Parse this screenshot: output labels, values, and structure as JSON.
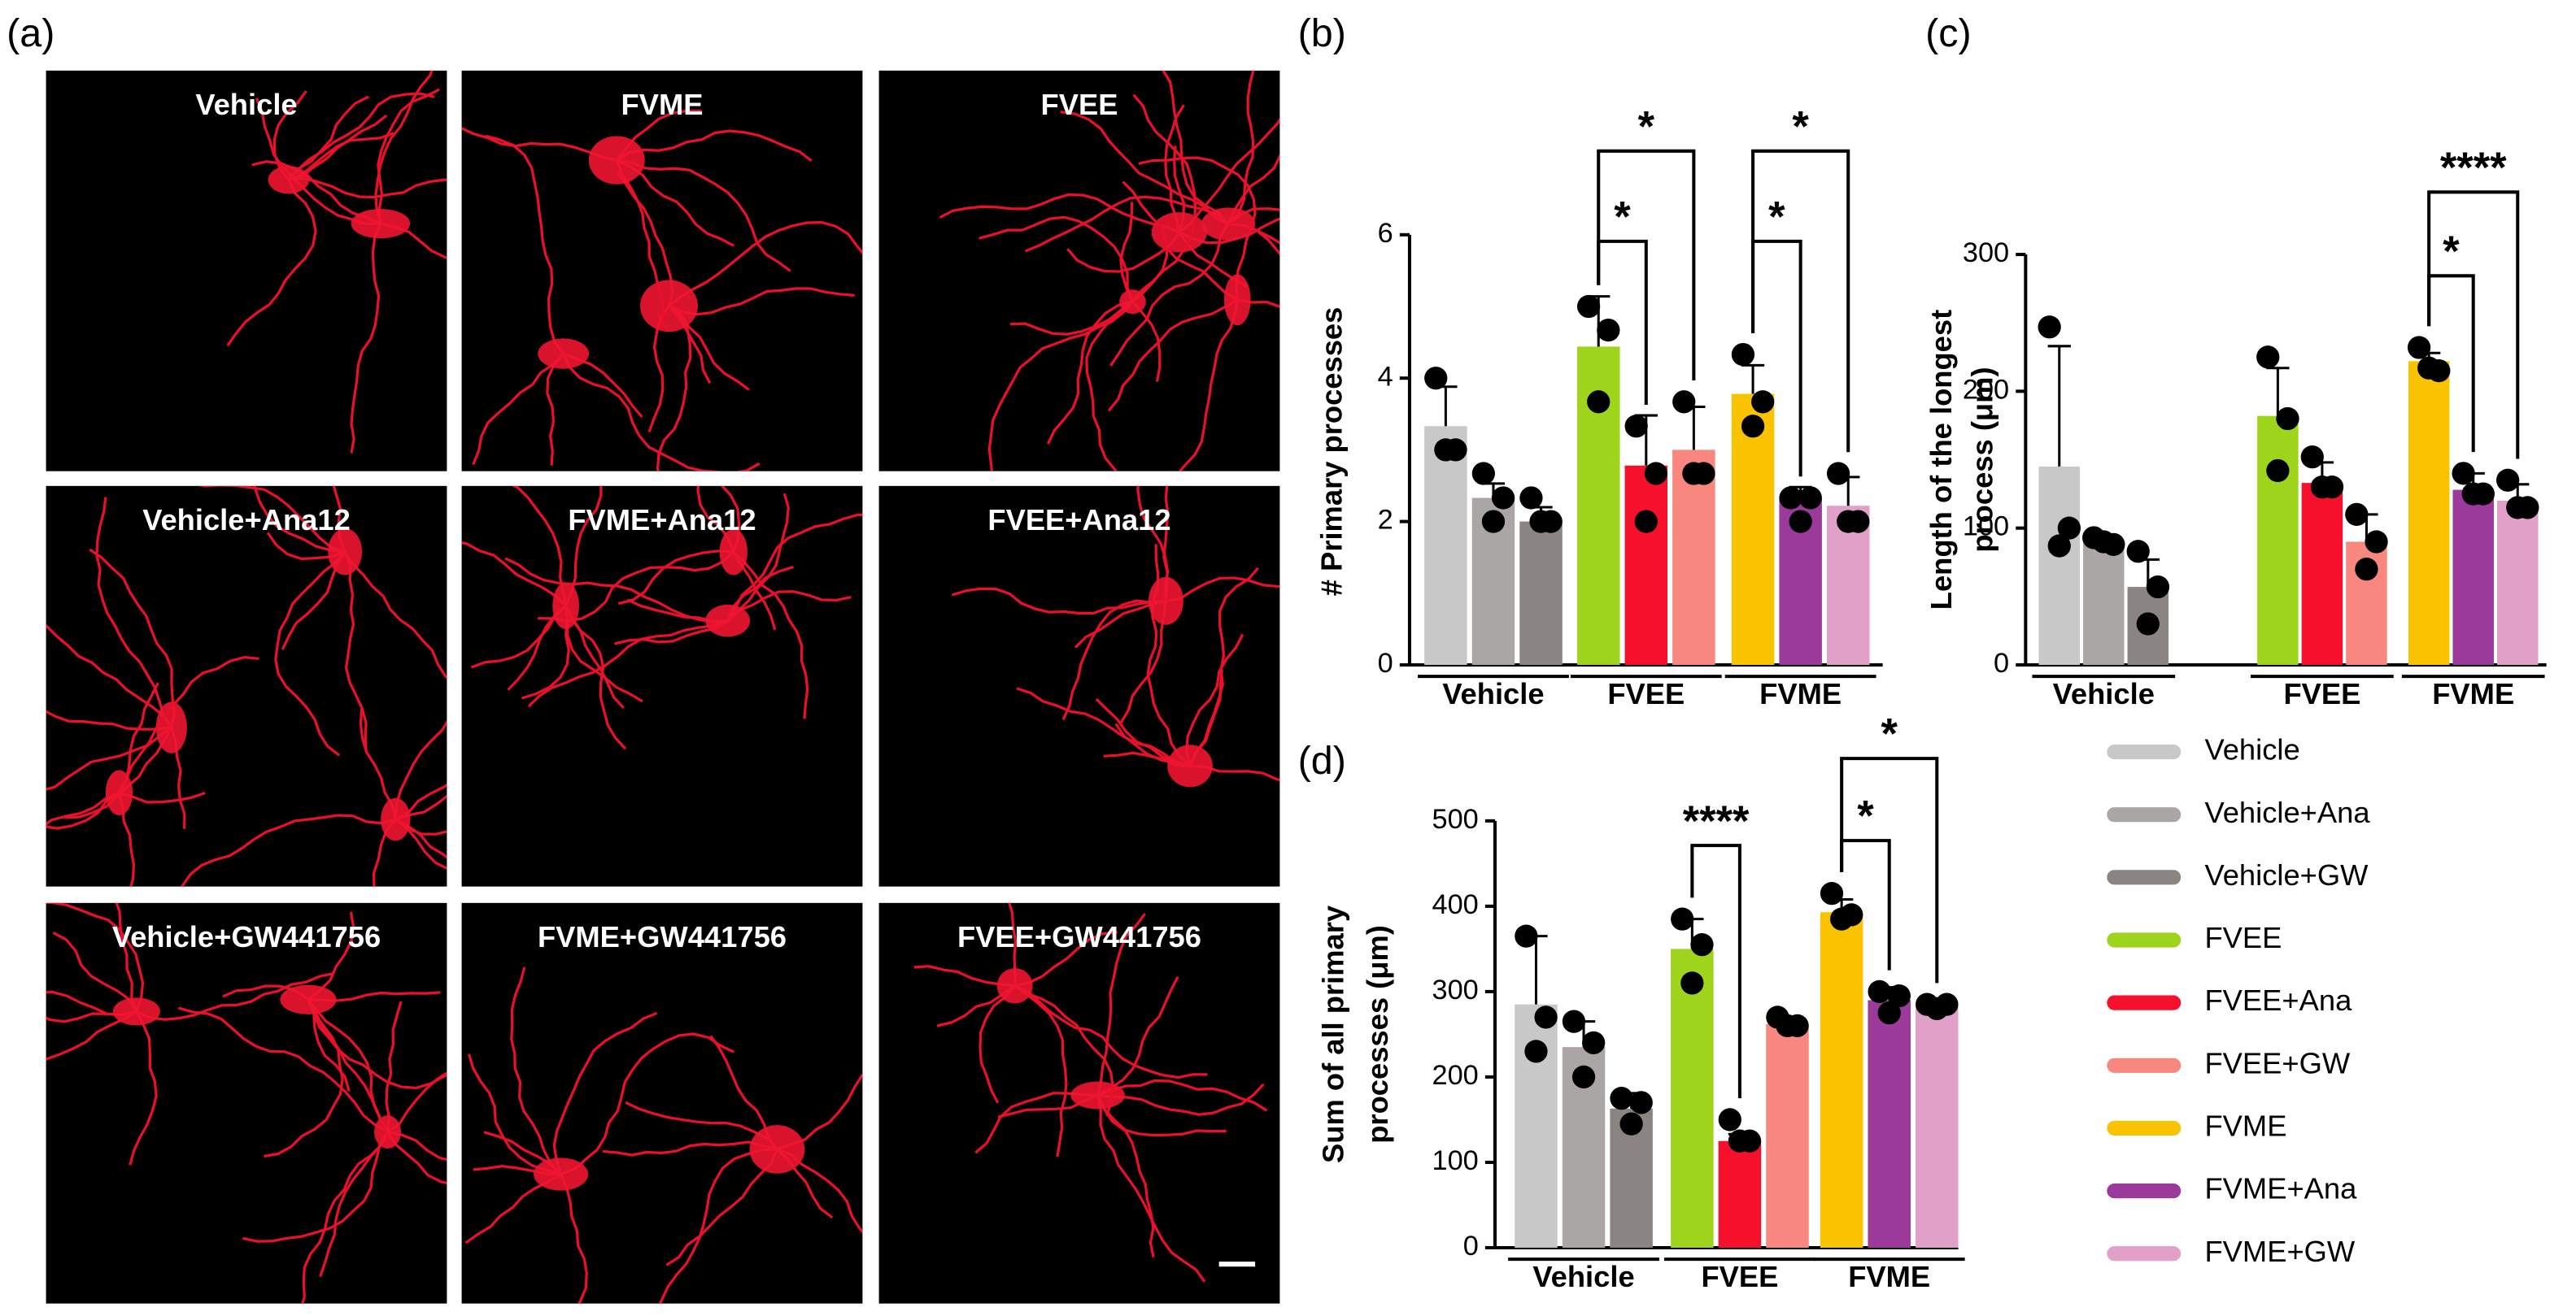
{
  "panel_a": {
    "label": "(a)",
    "images": [
      "Vehicle",
      "FVME",
      "FVEE",
      "Vehicle+Ana12",
      "FVME+Ana12",
      "FVEE+Ana12",
      "Vehicle+GW441756",
      "FVME+GW441756",
      "FVEE+GW441756"
    ]
  },
  "legend": [
    {
      "name": "Vehicle",
      "color": "#c8c8c8"
    },
    {
      "name": "Vehicle+Ana",
      "color": "#aba6a6"
    },
    {
      "name": "Vehicle+GW",
      "color": "#8a8582"
    },
    {
      "name": "FVEE",
      "color": "#9fd41c"
    },
    {
      "name": "FVEE+Ana",
      "color": "#f5102c"
    },
    {
      "name": "FVEE+GW",
      "color": "#f8877f"
    },
    {
      "name": "FVME",
      "color": "#f9c300"
    },
    {
      "name": "FVME+Ana",
      "color": "#9b3a9b"
    },
    {
      "name": "FVME+GW",
      "color": "#e1a0c8"
    }
  ],
  "chart_data": [
    {
      "type": "bar",
      "panel_label": "(b)",
      "ylabel": [
        "# Primary processes"
      ],
      "groups": [
        "Vehicle",
        "FVEE",
        "FVME"
      ],
      "values": [
        3.33,
        2.33,
        2.0,
        4.44,
        2.78,
        3.0,
        3.78,
        2.33,
        2.22
      ],
      "errors": [
        0.55,
        0.2,
        0.2,
        0.7,
        0.7,
        0.6,
        0.4,
        0.15,
        0.4
      ],
      "points": [
        [
          4.0,
          3.0,
          3.0
        ],
        [
          2.67,
          2.33,
          2.0
        ],
        [
          2.33,
          2.0,
          2.0
        ],
        [
          5.0,
          4.67,
          3.67
        ],
        [
          3.33,
          2.67,
          2.0
        ],
        [
          3.67,
          2.67,
          2.67
        ],
        [
          4.33,
          3.67,
          3.33
        ],
        [
          2.33,
          2.33,
          2.0
        ],
        [
          2.67,
          2.0,
          2.0
        ]
      ],
      "ylim": [
        0,
        6
      ],
      "yticks": [
        0,
        2,
        4,
        6
      ],
      "comparisons": [
        {
          "label": "*",
          "bars": [
            3,
            4
          ]
        },
        {
          "label": "*",
          "bars": [
            3,
            5
          ]
        },
        {
          "label": "*",
          "bars": [
            6,
            7
          ]
        },
        {
          "label": "*",
          "bars": [
            6,
            8
          ]
        }
      ]
    },
    {
      "type": "bar",
      "panel_label": "(c)",
      "ylabel": [
        "Length of the longest",
        "process (μm)"
      ],
      "groups": [
        "Vehicle",
        "FVEE",
        "FVME"
      ],
      "values": [
        145,
        90,
        57,
        182,
        133,
        90,
        222,
        128,
        120
      ],
      "errors": [
        88,
        3,
        20,
        35,
        15,
        20,
        6,
        12,
        12
      ],
      "points": [
        [
          247,
          100,
          87
        ],
        [
          93,
          88,
          90
        ],
        [
          83,
          57,
          30
        ],
        [
          225,
          180,
          142
        ],
        [
          152,
          130,
          130
        ],
        [
          110,
          90,
          70
        ],
        [
          232,
          215,
          217
        ],
        [
          140,
          125,
          125
        ],
        [
          135,
          115,
          115
        ]
      ],
      "ylim": [
        0,
        300
      ],
      "yticks": [
        0,
        100,
        200,
        300
      ],
      "comparisons": [
        {
          "label": "*",
          "bars": [
            6,
            7
          ]
        },
        {
          "label": "****",
          "bars": [
            6,
            8
          ]
        }
      ]
    },
    {
      "type": "bar",
      "panel_label": "(d)",
      "ylabel": [
        "Sum of all primary",
        "processes (μm)"
      ],
      "groups": [
        "Vehicle",
        "FVEE",
        "FVME"
      ],
      "values": [
        285,
        235,
        163,
        350,
        125,
        262,
        393,
        290,
        282
      ],
      "errors": [
        80,
        30,
        18,
        35,
        8,
        8,
        15,
        15,
        5
      ],
      "points": [
        [
          365,
          270,
          230
        ],
        [
          265,
          240,
          200
        ],
        [
          175,
          170,
          145
        ],
        [
          385,
          355,
          310
        ],
        [
          150,
          125,
          125
        ],
        [
          270,
          260,
          260
        ],
        [
          415,
          390,
          385
        ],
        [
          300,
          295,
          275
        ],
        [
          285,
          285,
          280
        ]
      ],
      "ylim": [
        0,
        500
      ],
      "yticks": [
        0,
        100,
        200,
        300,
        400,
        500
      ],
      "comparisons": [
        {
          "label": "****",
          "bars": [
            3,
            4
          ]
        },
        {
          "label": "*",
          "bars": [
            6,
            7
          ]
        },
        {
          "label": "*",
          "bars": [
            6,
            8
          ]
        }
      ]
    }
  ]
}
